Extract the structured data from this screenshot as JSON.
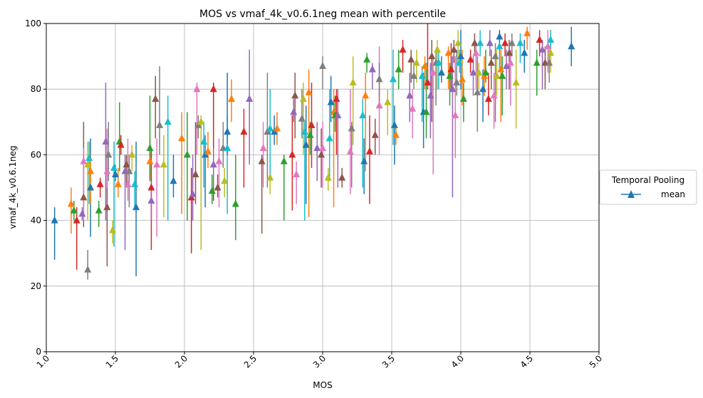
{
  "chart_data": {
    "type": "scatter",
    "title": "MOS vs vmaf_4k_v0.6.1neg mean with percentile",
    "xlabel": "MOS",
    "ylabel": "vmaf_4k_v0.6.1neg",
    "xlim": [
      1.0,
      5.0
    ],
    "ylim": [
      0,
      100
    ],
    "x_ticks": [
      "1.0",
      "1.5",
      "2.0",
      "2.5",
      "3.0",
      "3.5",
      "4.0",
      "4.5",
      "5.0"
    ],
    "y_ticks": [
      "0",
      "20",
      "40",
      "60",
      "80",
      "100"
    ],
    "grid": true,
    "legend": {
      "title": "Temporal Pooling",
      "placement": "right",
      "entries": [
        "mean"
      ]
    },
    "color_cycle": [
      "#1f77b4",
      "#ff7f0e",
      "#2ca02c",
      "#d62728",
      "#9467bd",
      "#8c564b",
      "#e377c2",
      "#7f7f7f",
      "#bcbd22",
      "#17becf"
    ],
    "series": [
      {
        "name": "mean",
        "marker": "triangle-up",
        "points": [
          [
            1.06,
            40,
            28,
            44
          ],
          [
            1.18,
            45,
            36,
            50
          ],
          [
            1.2,
            43,
            40,
            46
          ],
          [
            1.22,
            40,
            25,
            44
          ],
          [
            1.26,
            42,
            40,
            44
          ],
          [
            1.27,
            47,
            38,
            70
          ],
          [
            1.27,
            58,
            40,
            62
          ],
          [
            1.3,
            25,
            22,
            31
          ],
          [
            1.3,
            57,
            40,
            64
          ],
          [
            1.31,
            59,
            45,
            64
          ],
          [
            1.32,
            50,
            35,
            65
          ],
          [
            1.32,
            55,
            45,
            60
          ],
          [
            1.38,
            43,
            38,
            46
          ],
          [
            1.39,
            51,
            47,
            53
          ],
          [
            1.43,
            64,
            40,
            82
          ],
          [
            1.44,
            44,
            26,
            60
          ],
          [
            1.44,
            55,
            50,
            68
          ],
          [
            1.45,
            60,
            52,
            70
          ],
          [
            1.48,
            37,
            33,
            40
          ],
          [
            1.49,
            56,
            32,
            64
          ],
          [
            1.5,
            54,
            52,
            57
          ],
          [
            1.52,
            51,
            47,
            56
          ],
          [
            1.53,
            64,
            55,
            76
          ],
          [
            1.54,
            63,
            60,
            66
          ],
          [
            1.57,
            55,
            31,
            60
          ],
          [
            1.58,
            57,
            50,
            60
          ],
          [
            1.59,
            51,
            46,
            65
          ],
          [
            1.6,
            55,
            44,
            60
          ],
          [
            1.62,
            60,
            55,
            63
          ],
          [
            1.64,
            51,
            44,
            55
          ],
          [
            1.65,
            44,
            23,
            64
          ],
          [
            1.75,
            58,
            52,
            65
          ],
          [
            1.75,
            62,
            52,
            78
          ],
          [
            1.76,
            50,
            31,
            62
          ],
          [
            1.76,
            46,
            40,
            52
          ],
          [
            1.79,
            77,
            65,
            84
          ],
          [
            1.8,
            57,
            35,
            65
          ],
          [
            1.82,
            69,
            60,
            87
          ],
          [
            1.85,
            57,
            41,
            66
          ],
          [
            1.88,
            70,
            40,
            78
          ],
          [
            1.92,
            52,
            47,
            60
          ],
          [
            1.98,
            65,
            42,
            73
          ],
          [
            2.02,
            60,
            40,
            73
          ],
          [
            2.05,
            47,
            30,
            56
          ],
          [
            2.06,
            48,
            40,
            60
          ],
          [
            2.08,
            54,
            45,
            70
          ],
          [
            2.09,
            80,
            60,
            82
          ],
          [
            2.1,
            69,
            65,
            72
          ],
          [
            2.12,
            70,
            31,
            72
          ],
          [
            2.14,
            64,
            50,
            70
          ],
          [
            2.15,
            60,
            44,
            66
          ],
          [
            2.17,
            61,
            56,
            67
          ],
          [
            2.2,
            49,
            45,
            54
          ],
          [
            2.21,
            80,
            46,
            82
          ],
          [
            2.21,
            57,
            50,
            62
          ],
          [
            2.24,
            50,
            47,
            54
          ],
          [
            2.25,
            58,
            44,
            65
          ],
          [
            2.28,
            62,
            56,
            70
          ],
          [
            2.29,
            52,
            47,
            56
          ],
          [
            2.31,
            62,
            42,
            72
          ],
          [
            2.31,
            67,
            60,
            85
          ],
          [
            2.34,
            77,
            70,
            83
          ],
          [
            2.37,
            45,
            34,
            60
          ],
          [
            2.43,
            67,
            50,
            74
          ],
          [
            2.47,
            77,
            57,
            92
          ],
          [
            2.56,
            58,
            36,
            60
          ],
          [
            2.57,
            62,
            50,
            70
          ],
          [
            2.6,
            67,
            50,
            85
          ],
          [
            2.62,
            53,
            48,
            60
          ],
          [
            2.62,
            68,
            52,
            80
          ],
          [
            2.65,
            67,
            63,
            72
          ],
          [
            2.67,
            68,
            63,
            73
          ],
          [
            2.72,
            58,
            40,
            60
          ],
          [
            2.78,
            60,
            43,
            72
          ],
          [
            2.79,
            73,
            70,
            77
          ],
          [
            2.8,
            78,
            65,
            85
          ],
          [
            2.81,
            54,
            45,
            58
          ],
          [
            2.85,
            71,
            65,
            80
          ],
          [
            2.86,
            77,
            60,
            82
          ],
          [
            2.87,
            67,
            40,
            70
          ],
          [
            2.88,
            63,
            45,
            75
          ],
          [
            2.9,
            79,
            41,
            86
          ],
          [
            2.91,
            66,
            60,
            70
          ],
          [
            2.92,
            69,
            56,
            82
          ],
          [
            2.96,
            62,
            52,
            70
          ],
          [
            2.99,
            60,
            50,
            68
          ],
          [
            3.0,
            62,
            50,
            70
          ],
          [
            3.0,
            87,
            80,
            90
          ],
          [
            3.04,
            53,
            49,
            56
          ],
          [
            3.05,
            65,
            52,
            80
          ],
          [
            3.06,
            76,
            70,
            84
          ],
          [
            3.08,
            73,
            44,
            80
          ],
          [
            3.09,
            72,
            67,
            78
          ],
          [
            3.1,
            77,
            60,
            80
          ],
          [
            3.11,
            72,
            50,
            80
          ],
          [
            3.14,
            53,
            50,
            56
          ],
          [
            3.2,
            61,
            48,
            80
          ],
          [
            3.21,
            68,
            50,
            70
          ],
          [
            3.22,
            82,
            63,
            90
          ],
          [
            3.29,
            72,
            50,
            77
          ],
          [
            3.3,
            58,
            48,
            65
          ],
          [
            3.31,
            78,
            55,
            85
          ],
          [
            3.32,
            89,
            85,
            91
          ],
          [
            3.34,
            61,
            45,
            72
          ],
          [
            3.36,
            86,
            80,
            88
          ],
          [
            3.38,
            66,
            60,
            71
          ],
          [
            3.41,
            75,
            60,
            93
          ],
          [
            3.41,
            83,
            75,
            88
          ],
          [
            3.47,
            76,
            66,
            80
          ],
          [
            3.51,
            83,
            63,
            92
          ],
          [
            3.52,
            69,
            57,
            75
          ],
          [
            3.53,
            66,
            63,
            69
          ],
          [
            3.55,
            86,
            80,
            92
          ],
          [
            3.58,
            92,
            85,
            95
          ],
          [
            3.63,
            78,
            70,
            85
          ],
          [
            3.64,
            89,
            82,
            92
          ],
          [
            3.65,
            74,
            65,
            80
          ],
          [
            3.66,
            84,
            80,
            88
          ],
          [
            3.68,
            88,
            82,
            92
          ],
          [
            3.72,
            84,
            70,
            87
          ],
          [
            3.73,
            73,
            62,
            85
          ],
          [
            3.74,
            87,
            80,
            90
          ],
          [
            3.75,
            73,
            65,
            88
          ],
          [
            3.76,
            82,
            80,
            100
          ],
          [
            3.78,
            78,
            65,
            88
          ],
          [
            3.79,
            90,
            70,
            95
          ],
          [
            3.8,
            85,
            54,
            90
          ],
          [
            3.82,
            88,
            75,
            92
          ],
          [
            3.83,
            92,
            80,
            95
          ],
          [
            3.84,
            88,
            80,
            92
          ],
          [
            3.86,
            85,
            82,
            90
          ],
          [
            3.91,
            91,
            80,
            93
          ],
          [
            3.92,
            84,
            75,
            88
          ],
          [
            3.93,
            86,
            80,
            94
          ],
          [
            3.94,
            80,
            47,
            90
          ],
          [
            3.95,
            92,
            88,
            95
          ],
          [
            3.96,
            72,
            59,
            90
          ],
          [
            3.97,
            82,
            78,
            92
          ],
          [
            3.98,
            94,
            88,
            98
          ],
          [
            3.99,
            88,
            85,
            92
          ],
          [
            4.0,
            90,
            80,
            98
          ],
          [
            4.01,
            83,
            75,
            92
          ],
          [
            4.02,
            77,
            70,
            82
          ],
          [
            4.07,
            89,
            85,
            92
          ],
          [
            4.09,
            85,
            78,
            90
          ],
          [
            4.1,
            94,
            90,
            97
          ],
          [
            4.11,
            91,
            80,
            94
          ],
          [
            4.12,
            79,
            67,
            90
          ],
          [
            4.13,
            85,
            80,
            88
          ],
          [
            4.14,
            94,
            90,
            98
          ],
          [
            4.16,
            80,
            70,
            86
          ],
          [
            4.17,
            84,
            78,
            90
          ],
          [
            4.18,
            85,
            82,
            92
          ],
          [
            4.2,
            77,
            72,
            85
          ],
          [
            4.21,
            94,
            90,
            98
          ],
          [
            4.22,
            88,
            80,
            92
          ],
          [
            4.24,
            78,
            68,
            85
          ],
          [
            4.25,
            90,
            70,
            94
          ],
          [
            4.26,
            84,
            78,
            92
          ],
          [
            4.28,
            93,
            86,
            98
          ],
          [
            4.28,
            96,
            92,
            98
          ],
          [
            4.29,
            86,
            70,
            92
          ],
          [
            4.3,
            84,
            72,
            90
          ],
          [
            4.32,
            94,
            90,
            97
          ],
          [
            4.33,
            87,
            80,
            92
          ],
          [
            4.35,
            91,
            80,
            95
          ],
          [
            4.36,
            88,
            75,
            92
          ],
          [
            4.37,
            94,
            90,
            97
          ],
          [
            4.4,
            82,
            68,
            92
          ],
          [
            4.43,
            94,
            88,
            97
          ],
          [
            4.46,
            91,
            85,
            95
          ],
          [
            4.48,
            97,
            92,
            99
          ],
          [
            4.55,
            88,
            78,
            92
          ],
          [
            4.57,
            95,
            90,
            98
          ],
          [
            4.59,
            92,
            80,
            95
          ],
          [
            4.61,
            88,
            80,
            93
          ],
          [
            4.63,
            93,
            85,
            98
          ],
          [
            4.64,
            88,
            82,
            92
          ],
          [
            4.65,
            91,
            85,
            98
          ],
          [
            4.65,
            95,
            90,
            98
          ],
          [
            4.8,
            93,
            87,
            99
          ]
        ]
      }
    ]
  }
}
